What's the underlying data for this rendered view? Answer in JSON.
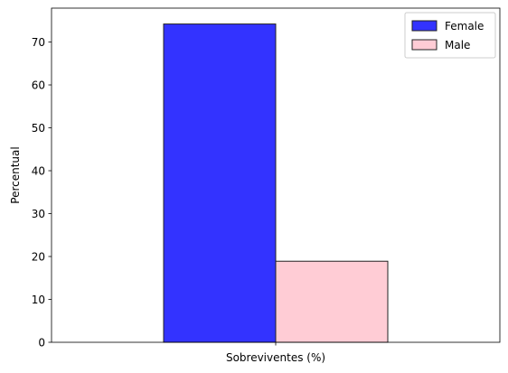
{
  "chart_data": {
    "type": "bar",
    "categories": [
      "Sobreviventes (%)"
    ],
    "series": [
      {
        "name": "Female",
        "values": [
          74.2
        ],
        "color": "#3333ff"
      },
      {
        "name": "Male",
        "values": [
          18.9
        ],
        "color": "#ffccd5"
      }
    ],
    "xlabel": "",
    "ylabel": "Percentual",
    "ylim": [
      0,
      77.9
    ],
    "yticks": [
      0,
      10,
      20,
      30,
      40,
      50,
      60,
      70
    ],
    "grid": false,
    "legend": "top-right"
  }
}
